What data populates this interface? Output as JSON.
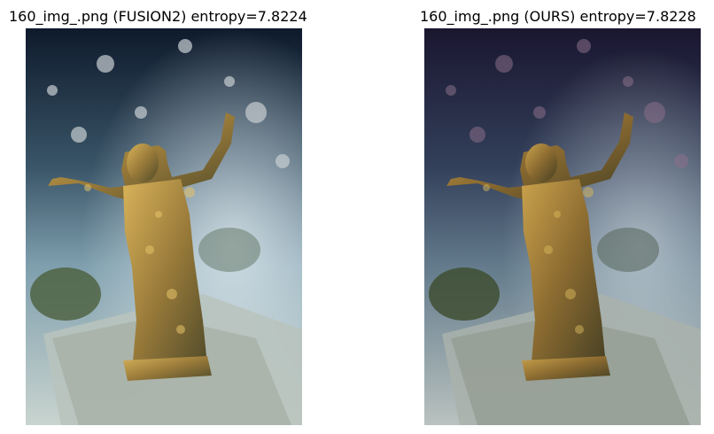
{
  "figure": {
    "panels": [
      {
        "title": "160_img_.png (FUSION2) entropy=7.8224",
        "image": "underwater bronze statue with outstretched arms on seabed, brighter and bluer tone",
        "palette": {
          "top": "#0e1a2c",
          "mid": "#5f8196",
          "bottom": "#c9d4cf",
          "statue": "#9a7b3a",
          "highlight": "#d8b35a"
        }
      },
      {
        "title": "160_img_.png (OURS) entropy=7.8228",
        "image": "underwater bronze statue with outstretched arms on seabed, darker purple-tinted tone",
        "palette": {
          "top": "#1a1630",
          "mid": "#4e5f78",
          "bottom": "#b9c2bf",
          "statue": "#8a6a30",
          "highlight": "#caa24c"
        }
      }
    ]
  }
}
